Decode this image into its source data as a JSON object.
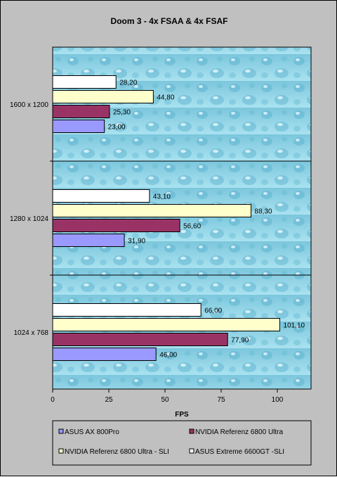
{
  "chart_data": {
    "type": "bar",
    "orientation": "horizontal",
    "title": "Doom 3 - 4x FSAA & 4x FSAF",
    "xlabel": "FPS",
    "ylabel": "",
    "xlim": [
      0,
      115
    ],
    "x_ticks": [
      0,
      25,
      50,
      75,
      100
    ],
    "grid": false,
    "legend_position": "bottom",
    "categories": [
      "1600 x 1200",
      "1280 x 1024",
      "1024 x 768"
    ],
    "series": [
      {
        "name": "ASUS AX 800Pro",
        "color": "#9999ff",
        "values": [
          23.0,
          31.9,
          46.0
        ],
        "labels": [
          "23,00",
          "31,90",
          "46,00"
        ]
      },
      {
        "name": "NVIDIA  Referenz 6800 Ultra",
        "color": "#993366",
        "values": [
          25.3,
          56.6,
          77.9
        ],
        "labels": [
          "25,30",
          "56,60",
          "77,90"
        ]
      },
      {
        "name": "NVIDIA  Referenz 6800 Ultra - SLI",
        "color": "#ffffcc",
        "values": [
          44.8,
          88.3,
          101.1
        ],
        "labels": [
          "44,80",
          "88,30",
          "101,10"
        ]
      },
      {
        "name": "ASUS Extreme 6600GT -SLI",
        "color": "#ffffff",
        "values": [
          28.2,
          43.1,
          66.0
        ],
        "labels": [
          "28,20",
          "43,10",
          "66,00"
        ]
      }
    ]
  }
}
